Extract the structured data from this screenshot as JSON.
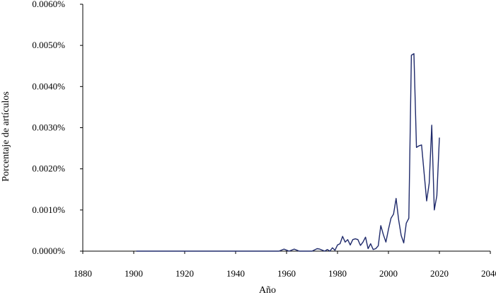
{
  "chart_data": {
    "type": "line",
    "title": "",
    "xlabel": "Año",
    "ylabel": "Porcentaje de artículos",
    "xlim": [
      1880,
      2040
    ],
    "ylim": [
      0,
      0.006
    ],
    "x_ticks": [
      "1880",
      "1900",
      "1920",
      "1940",
      "1960",
      "1980",
      "2000",
      "2020",
      "2040"
    ],
    "y_ticks": [
      "0.0000%",
      "0.0010%",
      "0.0020%",
      "0.0030%",
      "0.0040%",
      "0.0050%",
      "0.0060%"
    ],
    "grid": false,
    "legend": "none",
    "series": [
      {
        "color": "#1f2a6b",
        "x": [
          1901,
          1905,
          1910,
          1915,
          1920,
          1925,
          1930,
          1935,
          1940,
          1945,
          1950,
          1955,
          1957,
          1959,
          1961,
          1963,
          1965,
          1970,
          1972,
          1973,
          1975,
          1976,
          1977,
          1978,
          1979,
          1980,
          1981,
          1982,
          1983,
          1984,
          1985,
          1986,
          1987,
          1988,
          1989,
          1990,
          1991,
          1992,
          1993,
          1994,
          1995,
          1996,
          1997,
          1998,
          1999,
          2000,
          2001,
          2002,
          2003,
          2004,
          2005,
          2006,
          2007,
          2008,
          2009,
          2010,
          2011,
          2012,
          2013,
          2014,
          2015,
          2016,
          2017,
          2018,
          2019,
          2020
        ],
        "y": [
          0,
          0,
          0,
          0,
          0,
          0,
          0,
          0,
          0,
          0,
          0,
          0,
          0,
          5e-05,
          0,
          5e-05,
          0,
          0,
          6e-05,
          5e-05,
          0,
          4e-05,
          0,
          8e-05,
          2e-05,
          0.00015,
          0.00018,
          0.00036,
          0.00022,
          0.00028,
          0.00015,
          0.00028,
          0.0003,
          0.00028,
          0.00014,
          0.00022,
          0.00034,
          6e-05,
          0.00018,
          4e-05,
          6e-05,
          0.00013,
          0.00062,
          0.0004,
          0.00022,
          0.00053,
          0.0008,
          0.0009,
          0.00128,
          0.00076,
          0.00038,
          0.0002,
          0.00068,
          0.0008,
          0.00476,
          0.0048,
          0.00252,
          0.00256,
          0.00258,
          0.0019,
          0.00122,
          0.00165,
          0.00306,
          0.001,
          0.00135,
          0.00276
        ]
      }
    ]
  }
}
